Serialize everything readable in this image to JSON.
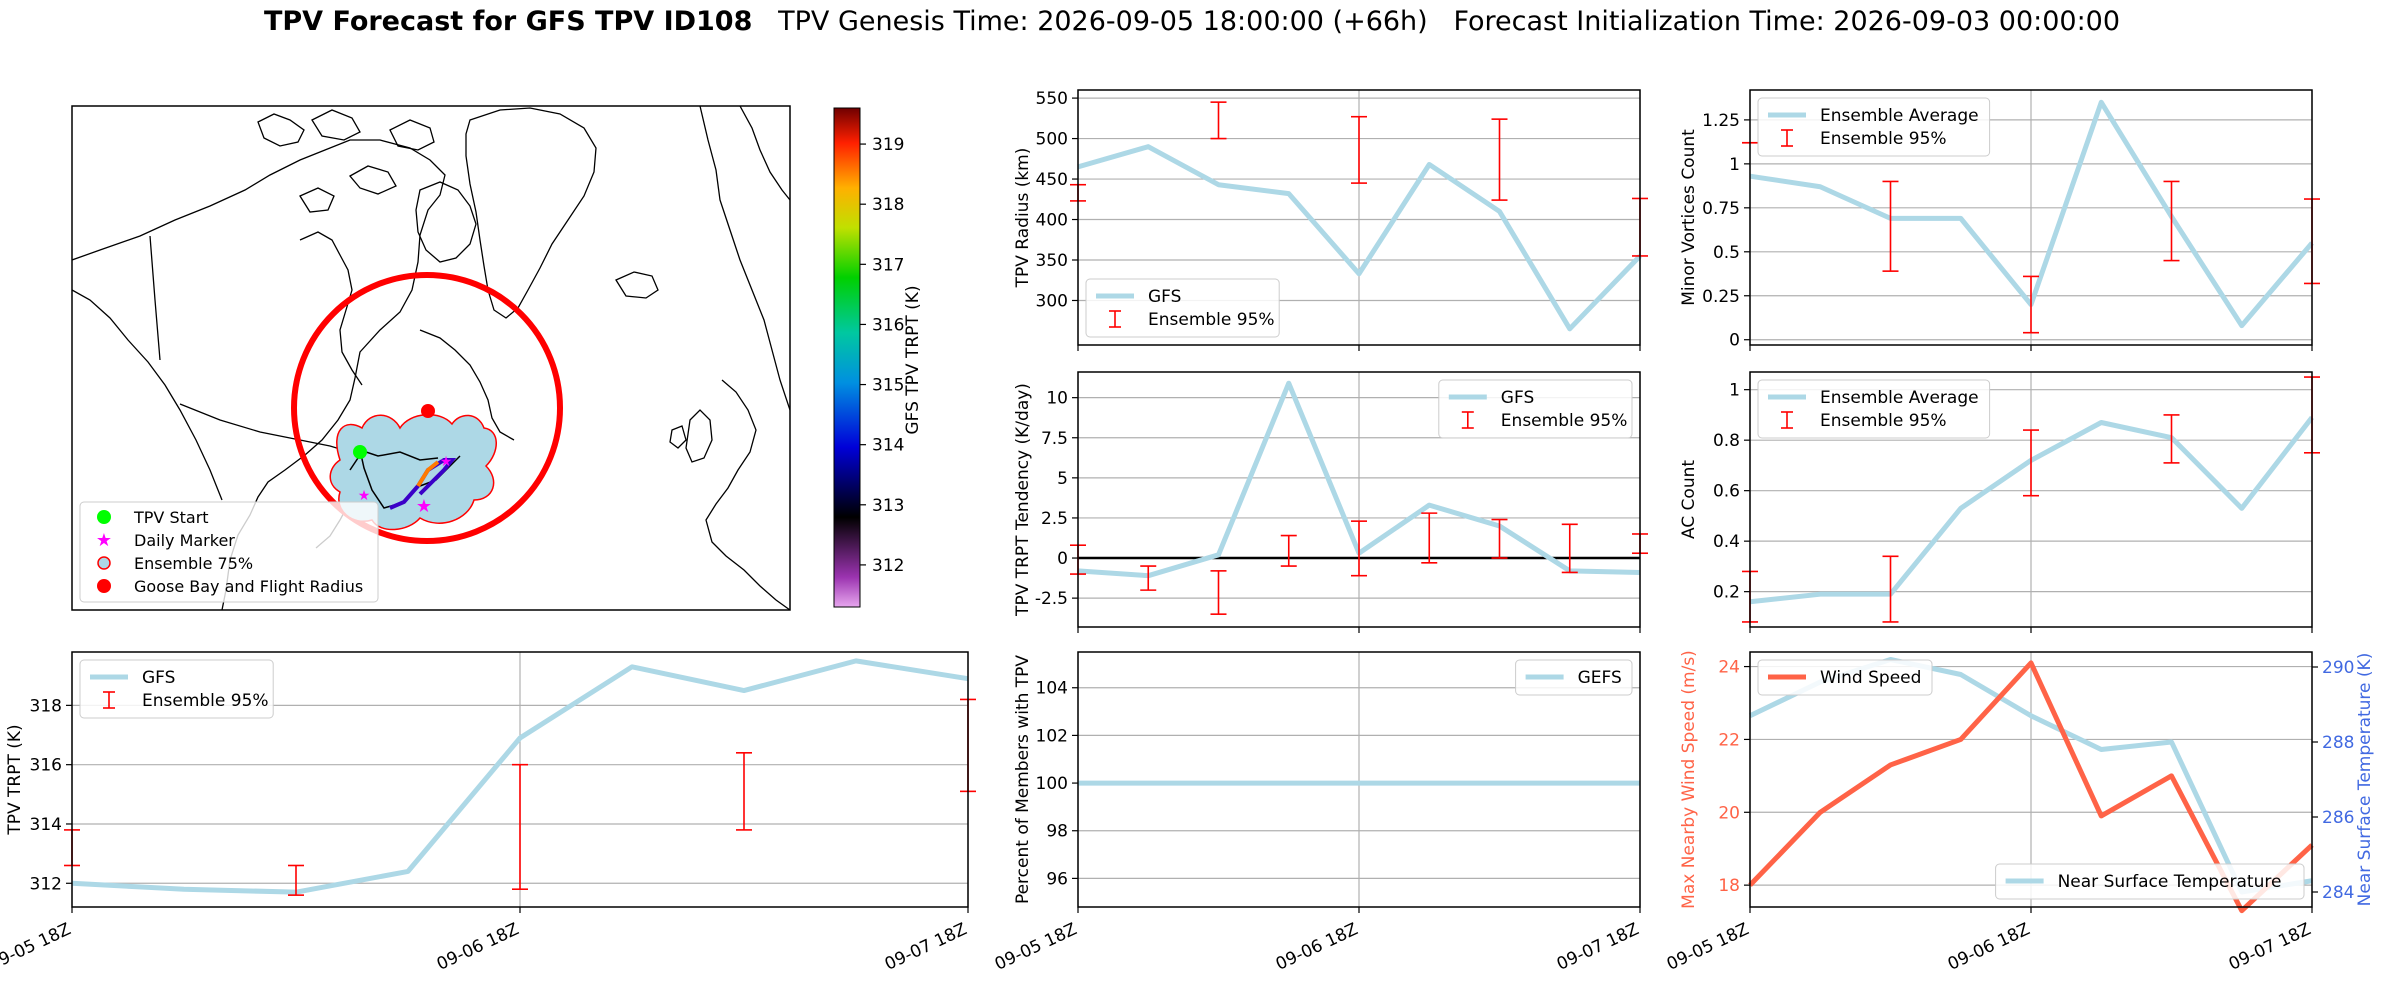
{
  "header": {
    "title_bold": "TPV Forecast for GFS TPV ID108",
    "genesis": "TPV Genesis Time: 2026-09-05 18:00:00 (+66h)",
    "init": "Forecast Initialization Time: 2026-09-03 00:00:00"
  },
  "colors": {
    "line": "#add8e6",
    "error": "#ff0000",
    "wind": "#ff6347",
    "temp_axis": "#4169e1",
    "zero": "#000000"
  },
  "map": {
    "legend": [
      "TPV Start",
      "Daily Marker",
      "Ensemble 75%",
      "Goose Bay and Flight Radius"
    ],
    "colorbar_label": "GFS TPV TRPT (K)",
    "colorbar_ticks": [
      312,
      313,
      314,
      315,
      316,
      317,
      318,
      319
    ],
    "colorbar_range": [
      311.3,
      319.6
    ]
  },
  "chart_data": [
    {
      "id": "radius",
      "type": "line",
      "x": [
        0,
        0.25,
        0.5,
        0.75,
        1,
        1.25,
        1.5,
        1.75,
        2
      ],
      "series": [
        {
          "name": "GFS",
          "values": [
            465,
            490,
            443,
            432,
            333,
            468,
            410,
            265,
            355
          ]
        }
      ],
      "errorbars": [
        {
          "x": 0,
          "lo": 423,
          "hi": 443
        },
        {
          "x": 0.5,
          "lo": 500,
          "hi": 545
        },
        {
          "x": 1,
          "lo": 445,
          "hi": 527
        },
        {
          "x": 1.5,
          "lo": 424,
          "hi": 524
        },
        {
          "x": 2,
          "lo": 355,
          "hi": 426
        }
      ],
      "errorbar_label": "Ensemble 95%",
      "ylabel": "TPV Radius (km)",
      "ylim": [
        245,
        560
      ],
      "yticks": [
        300,
        350,
        400,
        450,
        500,
        550
      ],
      "legend": "lower-left"
    },
    {
      "id": "minor",
      "type": "line",
      "x": [
        0,
        0.25,
        0.5,
        0.75,
        1,
        1.25,
        1.5,
        1.75,
        2
      ],
      "series": [
        {
          "name": "Ensemble Average",
          "values": [
            0.93,
            0.87,
            0.69,
            0.69,
            0.2,
            1.35,
            0.7,
            0.08,
            0.55
          ]
        }
      ],
      "errorbars": [
        {
          "x": 0,
          "lo": 1.12,
          "hi": 1.12
        },
        {
          "x": 0.5,
          "lo": 0.39,
          "hi": 0.9
        },
        {
          "x": 1,
          "lo": 0.04,
          "hi": 0.36
        },
        {
          "x": 1.5,
          "lo": 0.45,
          "hi": 0.9
        },
        {
          "x": 2,
          "lo": 0.32,
          "hi": 0.8
        }
      ],
      "errorbar_label": "Ensemble 95%",
      "ylabel": "Minor Vortices Count",
      "ylim": [
        -0.03,
        1.42
      ],
      "yticks": [
        0,
        0.25,
        0.5,
        0.75,
        1,
        1.25
      ],
      "legend": "upper-left"
    },
    {
      "id": "tendency",
      "type": "line",
      "x": [
        0,
        0.25,
        0.5,
        0.75,
        1,
        1.25,
        1.5,
        1.75,
        2
      ],
      "series": [
        {
          "name": "GFS",
          "values": [
            -0.8,
            -1.1,
            0.2,
            10.9,
            0.3,
            3.3,
            2.0,
            -0.8,
            -0.9
          ]
        }
      ],
      "errorbars": [
        {
          "x": 0,
          "lo": -1.0,
          "hi": 0.8
        },
        {
          "x": 0.25,
          "lo": -2.0,
          "hi": -0.5
        },
        {
          "x": 0.5,
          "lo": -3.5,
          "hi": -0.8
        },
        {
          "x": 0.75,
          "lo": -0.5,
          "hi": 1.4
        },
        {
          "x": 1,
          "lo": -1.1,
          "hi": 2.3
        },
        {
          "x": 1.25,
          "lo": -0.3,
          "hi": 2.8
        },
        {
          "x": 1.5,
          "lo": 0.0,
          "hi": 2.4
        },
        {
          "x": 1.75,
          "lo": -0.9,
          "hi": 2.1
        },
        {
          "x": 2,
          "lo": 0.3,
          "hi": 1.5
        }
      ],
      "errorbar_label": "Ensemble 95%",
      "hline": 0,
      "ylabel": "TPV TRPT Tendency (K/day)",
      "ylim": [
        -4.3,
        11.6
      ],
      "yticks": [
        -2.5,
        0,
        2.5,
        5,
        7.5,
        10
      ],
      "legend": "upper-right"
    },
    {
      "id": "ac",
      "type": "line",
      "x": [
        0,
        0.25,
        0.5,
        0.75,
        1,
        1.25,
        1.5,
        1.75,
        2
      ],
      "series": [
        {
          "name": "Ensemble Average",
          "values": [
            0.16,
            0.19,
            0.19,
            0.53,
            0.72,
            0.87,
            0.81,
            0.53,
            0.89
          ]
        }
      ],
      "errorbars": [
        {
          "x": 0,
          "lo": 0.08,
          "hi": 0.28
        },
        {
          "x": 0.5,
          "lo": 0.08,
          "hi": 0.34
        },
        {
          "x": 1,
          "lo": 0.58,
          "hi": 0.84
        },
        {
          "x": 1.5,
          "lo": 0.71,
          "hi": 0.9
        },
        {
          "x": 2,
          "lo": 0.75,
          "hi": 1.05
        }
      ],
      "errorbar_label": "Ensemble 95%",
      "ylabel": "AC Count",
      "ylim": [
        0.06,
        1.07
      ],
      "yticks": [
        0.2,
        0.4,
        0.6,
        0.8,
        1.0
      ],
      "legend": "upper-left"
    },
    {
      "id": "trpt",
      "type": "line",
      "x": [
        0,
        0.25,
        0.5,
        0.75,
        1,
        1.25,
        1.5,
        1.75,
        2
      ],
      "series": [
        {
          "name": "GFS",
          "values": [
            312.0,
            311.8,
            311.7,
            312.4,
            316.9,
            319.3,
            318.5,
            319.5,
            318.9
          ]
        }
      ],
      "errorbars": [
        {
          "x": 0,
          "lo": 312.6,
          "hi": 313.8
        },
        {
          "x": 0.5,
          "lo": 311.6,
          "hi": 312.6
        },
        {
          "x": 1,
          "lo": 311.8,
          "hi": 316.0
        },
        {
          "x": 1.5,
          "lo": 313.8,
          "hi": 316.4
        },
        {
          "x": 2,
          "lo": 315.1,
          "hi": 318.2
        }
      ],
      "errorbar_label": "Ensemble 95%",
      "ylabel": "TPV TRPT (K)",
      "ylim": [
        311.2,
        319.8
      ],
      "yticks": [
        312,
        314,
        316,
        318
      ],
      "legend": "upper-left"
    },
    {
      "id": "percent",
      "type": "line",
      "x": [
        0,
        2
      ],
      "series": [
        {
          "name": "GEFS",
          "values": [
            100,
            100
          ]
        }
      ],
      "ylabel": "Percent of Members with TPV",
      "ylim": [
        94.8,
        105.5
      ],
      "yticks": [
        96,
        98,
        100,
        102,
        104
      ],
      "legend": "upper-right"
    },
    {
      "id": "wind",
      "type": "line",
      "x": [
        0,
        0.25,
        0.5,
        0.75,
        1,
        1.25,
        1.5,
        1.75,
        2
      ],
      "series": [
        {
          "name": "Wind Speed",
          "values": [
            18.0,
            20.0,
            21.3,
            22.0,
            24.1,
            19.9,
            21.0,
            17.3,
            19.1
          ]
        }
      ],
      "ylabel": "Max Nearby Wind Speed (m/s)",
      "ylim": [
        17.4,
        24.4
      ],
      "yticks": [
        18,
        20,
        22,
        24
      ],
      "legend": "upper-left",
      "secondary": {
        "name": "Near Surface Temperature",
        "values": [
          288.7,
          289.6,
          290.2,
          289.8,
          288.7,
          287.8,
          288.0,
          284.0,
          284.3
        ],
        "ylabel": "Near Surface Temperature (K)",
        "ylim": [
          283.6,
          290.4
        ],
        "yticks": [
          284,
          286,
          288,
          290
        ],
        "legend": "lower-right"
      }
    }
  ],
  "xaxis": {
    "ticks": [
      "09-05 18Z",
      "09-06 18Z",
      "09-07 18Z"
    ]
  }
}
